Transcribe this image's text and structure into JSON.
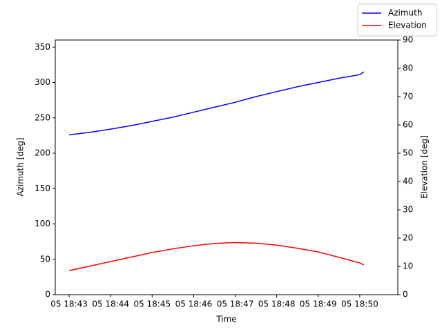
{
  "chart_data": {
    "type": "line",
    "xlabel": "Time",
    "ylabel": "Azimuth [deg]",
    "y2label": "Elevation [deg]",
    "x": [
      "05 18:43:00",
      "05 18:43:30",
      "05 18:44:00",
      "05 18:44:30",
      "05 18:45:00",
      "05 18:45:30",
      "05 18:46:00",
      "05 18:46:30",
      "05 18:47:00",
      "05 18:47:30",
      "05 18:48:00",
      "05 18:48:30",
      "05 18:49:00",
      "05 18:49:30",
      "05 18:50:00",
      "05 18:50:06"
    ],
    "series": [
      {
        "name": "Azimuth",
        "color": "#0000ff",
        "values": [
          226,
          229.5,
          234,
          239,
          245,
          251,
          258,
          265,
          272,
          280,
          287,
          294,
          300,
          306,
          311,
          315
        ]
      },
      {
        "name": "Elevation",
        "color": "#ff0000",
        "axis": "y2",
        "values": [
          8.5,
          10.1,
          11.7,
          13.3,
          14.9,
          16.2,
          17.3,
          18.1,
          18.4,
          18.2,
          17.5,
          16.4,
          15.1,
          13.2,
          11.2,
          10.5
        ]
      }
    ],
    "xlim": [
      "05 18:42:40",
      "05 18:50:55"
    ],
    "xticks": [
      "05 18:43",
      "05 18:44",
      "05 18:45",
      "05 18:46",
      "05 18:47",
      "05 18:48",
      "05 18:49",
      "05 18:50"
    ],
    "ylim": [
      0,
      360
    ],
    "yticks": [
      0,
      50,
      100,
      150,
      200,
      250,
      300,
      350
    ],
    "y2lim": [
      0,
      90
    ],
    "y2ticks": [
      0,
      10,
      20,
      30,
      40,
      50,
      60,
      70,
      80,
      90
    ],
    "legend": "upper right",
    "grid": false
  }
}
